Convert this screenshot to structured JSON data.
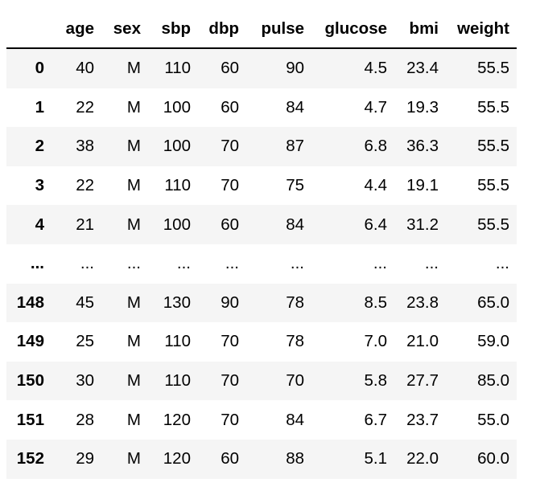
{
  "table": {
    "columns": [
      "",
      "age",
      "sex",
      "sbp",
      "dbp",
      "pulse",
      "glucose",
      "bmi",
      "weight"
    ],
    "rows": [
      {
        "index": "0",
        "cells": [
          "40",
          "M",
          "110",
          "60",
          "90",
          "4.5",
          "23.4",
          "55.5"
        ]
      },
      {
        "index": "1",
        "cells": [
          "22",
          "M",
          "100",
          "60",
          "84",
          "4.7",
          "19.3",
          "55.5"
        ]
      },
      {
        "index": "2",
        "cells": [
          "38",
          "M",
          "100",
          "70",
          "87",
          "6.8",
          "36.3",
          "55.5"
        ]
      },
      {
        "index": "3",
        "cells": [
          "22",
          "M",
          "110",
          "70",
          "75",
          "4.4",
          "19.1",
          "55.5"
        ]
      },
      {
        "index": "4",
        "cells": [
          "21",
          "M",
          "100",
          "60",
          "84",
          "6.4",
          "31.2",
          "55.5"
        ]
      },
      {
        "index": "...",
        "cells": [
          "...",
          "...",
          "...",
          "...",
          "...",
          "...",
          "...",
          "..."
        ]
      },
      {
        "index": "148",
        "cells": [
          "45",
          "M",
          "130",
          "90",
          "78",
          "8.5",
          "23.8",
          "65.0"
        ]
      },
      {
        "index": "149",
        "cells": [
          "25",
          "M",
          "110",
          "70",
          "78",
          "7.0",
          "21.0",
          "59.0"
        ]
      },
      {
        "index": "150",
        "cells": [
          "30",
          "M",
          "110",
          "70",
          "70",
          "5.8",
          "27.7",
          "85.0"
        ]
      },
      {
        "index": "151",
        "cells": [
          "28",
          "M",
          "120",
          "70",
          "84",
          "6.7",
          "23.7",
          "55.0"
        ]
      },
      {
        "index": "152",
        "cells": [
          "29",
          "M",
          "120",
          "60",
          "88",
          "5.1",
          "22.0",
          "60.0"
        ]
      }
    ]
  }
}
